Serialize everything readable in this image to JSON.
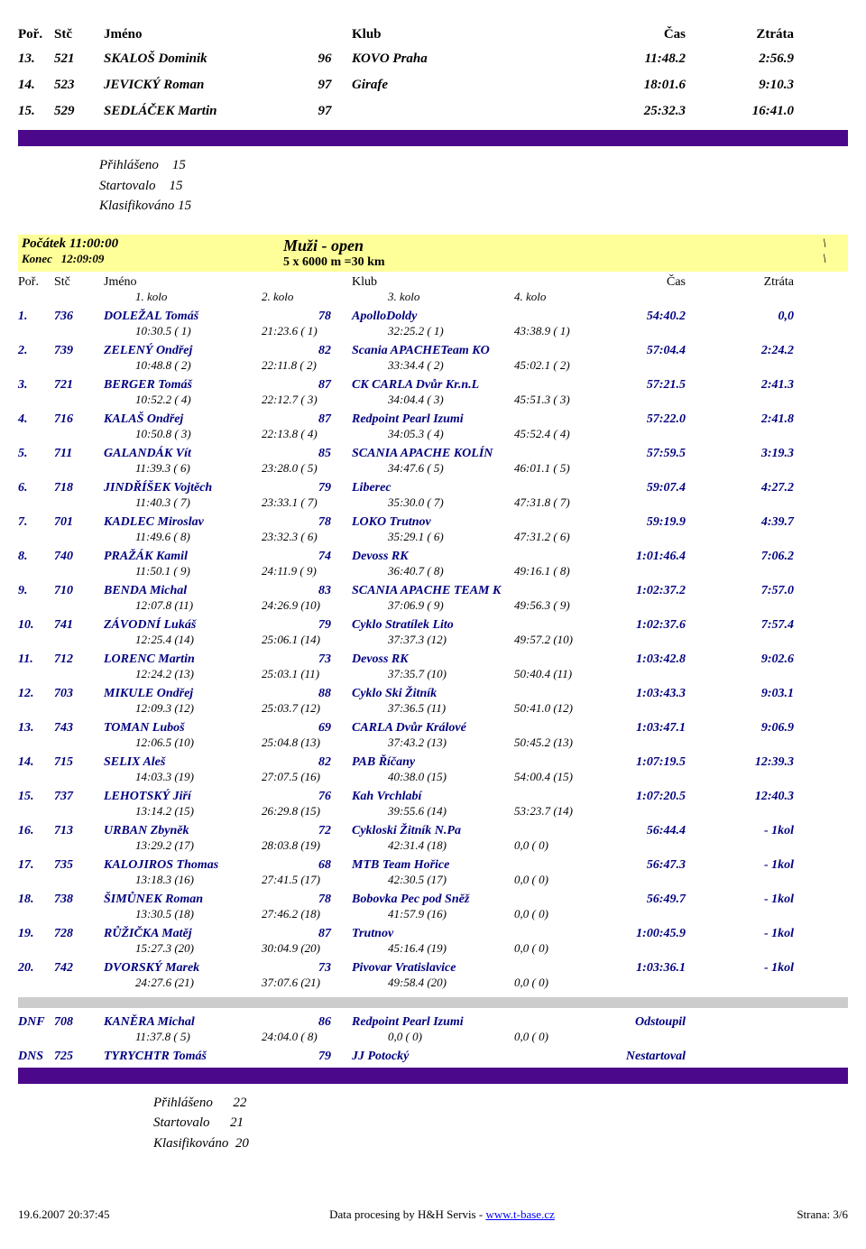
{
  "header": {
    "por": "Poř.",
    "stc": "Stč",
    "jmeno": "Jméno",
    "klub": "Klub",
    "cas": "Čas",
    "ztrata": "Ztráta"
  },
  "top_results": [
    {
      "por": "13.",
      "stc": "521",
      "name": "SKALOŠ Dominik",
      "bib": "96",
      "club": "KOVO Praha",
      "time": "11:48.2",
      "loss": "2:56.9"
    },
    {
      "por": "14.",
      "stc": "523",
      "name": "JEVICKÝ Roman",
      "bib": "97",
      "club": "Girafe",
      "time": "18:01.6",
      "loss": "9:10.3"
    },
    {
      "por": "15.",
      "stc": "529",
      "name": "SEDLÁČEK Martin",
      "bib": "97",
      "club": "",
      "time": "25:32.3",
      "loss": "16:41.0"
    }
  ],
  "stats1": {
    "prih_label": "Přihlášeno",
    "prih": "15",
    "start_label": "Startovalo",
    "start": "15",
    "klas_label": "Klasifikováno",
    "klas": "15"
  },
  "banner": {
    "start_label": "Počátek",
    "start_time": "11:00:00",
    "end_label": "Konec",
    "end_time": "12:09:09",
    "title": "Muži - open",
    "course": "5 x 6000 m =30 km",
    "slash": "\\"
  },
  "kolo": {
    "k1": "1. kolo",
    "k2": "2. kolo",
    "k3": "3. kolo",
    "k4": "4. kolo"
  },
  "results": [
    {
      "por": "1.",
      "stc": "736",
      "name": "DOLEŽAL Tomáš",
      "bib": "78",
      "club": "ApolloDoldy",
      "time": "54:40.2",
      "loss": "0,0",
      "splits": [
        "10:30.5  ( 1)",
        "21:23.6  ( 1)",
        "32:25.2  ( 1)",
        "43:38.9  ( 1)"
      ]
    },
    {
      "por": "2.",
      "stc": "739",
      "name": "ZELENÝ Ondřej",
      "bib": "82",
      "club": "Scania APACHETeam KO",
      "time": "57:04.4",
      "loss": "2:24.2",
      "splits": [
        "10:48.8  ( 2)",
        "22:11.8  ( 2)",
        "33:34.4  ( 2)",
        "45:02.1  ( 2)"
      ]
    },
    {
      "por": "3.",
      "stc": "721",
      "name": "BERGER Tomáš",
      "bib": "87",
      "club": "CK CARLA Dvůr Kr.n.L",
      "time": "57:21.5",
      "loss": "2:41.3",
      "splits": [
        "10:52.2  ( 4)",
        "22:12.7  ( 3)",
        "34:04.4  ( 3)",
        "45:51.3  ( 3)"
      ]
    },
    {
      "por": "4.",
      "stc": "716",
      "name": "KALAŠ Ondřej",
      "bib": "87",
      "club": "Redpoint Pearl Izumi",
      "time": "57:22.0",
      "loss": "2:41.8",
      "splits": [
        "10:50.8  ( 3)",
        "22:13.8  ( 4)",
        "34:05.3  ( 4)",
        "45:52.4  ( 4)"
      ]
    },
    {
      "por": "5.",
      "stc": "711",
      "name": "GALANDÁK Vít",
      "bib": "85",
      "club": "SCANIA APACHE KOLÍN",
      "time": "57:59.5",
      "loss": "3:19.3",
      "splits": [
        "11:39.3  ( 6)",
        "23:28.0  ( 5)",
        "34:47.6  ( 5)",
        "46:01.1  ( 5)"
      ]
    },
    {
      "por": "6.",
      "stc": "718",
      "name": "JINDŘÍŠEK Vojtěch",
      "bib": "79",
      "club": "Liberec",
      "time": "59:07.4",
      "loss": "4:27.2",
      "splits": [
        "11:40.3  ( 7)",
        "23:33.1  ( 7)",
        "35:30.0  ( 7)",
        "47:31.8  ( 7)"
      ]
    },
    {
      "por": "7.",
      "stc": "701",
      "name": "KADLEC Miroslav",
      "bib": "78",
      "club": "LOKO Trutnov",
      "time": "59:19.9",
      "loss": "4:39.7",
      "splits": [
        "11:49.6  ( 8)",
        "23:32.3  ( 6)",
        "35:29.1  ( 6)",
        "47:31.2  ( 6)"
      ]
    },
    {
      "por": "8.",
      "stc": "740",
      "name": "PRAŽÁK Kamil",
      "bib": "74",
      "club": "Devoss RK",
      "time": "1:01:46.4",
      "loss": "7:06.2",
      "splits": [
        "11:50.1  ( 9)",
        "24:11.9  ( 9)",
        "36:40.7  ( 8)",
        "49:16.1  ( 8)"
      ]
    },
    {
      "por": "9.",
      "stc": "710",
      "name": "BENDA Michal",
      "bib": "83",
      "club": "SCANIA APACHE TEAM K",
      "time": "1:02:37.2",
      "loss": "7:57.0",
      "splits": [
        "12:07.8  (11)",
        "24:26.9  (10)",
        "37:06.9  ( 9)",
        "49:56.3  ( 9)"
      ]
    },
    {
      "por": "10.",
      "stc": "741",
      "name": "ZÁVODNÍ Lukáš",
      "bib": "79",
      "club": "Cyklo Stratílek Lito",
      "time": "1:02:37.6",
      "loss": "7:57.4",
      "splits": [
        "12:25.4  (14)",
        "25:06.1  (14)",
        "37:37.3  (12)",
        "49:57.2  (10)"
      ]
    },
    {
      "por": "11.",
      "stc": "712",
      "name": "LORENC Martin",
      "bib": "73",
      "club": "Devoss RK",
      "time": "1:03:42.8",
      "loss": "9:02.6",
      "splits": [
        "12:24.2  (13)",
        "25:03.1  (11)",
        "37:35.7  (10)",
        "50:40.4  (11)"
      ]
    },
    {
      "por": "12.",
      "stc": "703",
      "name": "MIKULE Ondřej",
      "bib": "88",
      "club": "Cyklo Ski Žitník",
      "time": "1:03:43.3",
      "loss": "9:03.1",
      "splits": [
        "12:09.3  (12)",
        "25:03.7  (12)",
        "37:36.5  (11)",
        "50:41.0  (12)"
      ]
    },
    {
      "por": "13.",
      "stc": "743",
      "name": "TOMAN Luboš",
      "bib": "69",
      "club": "CARLA Dvůr Králové",
      "time": "1:03:47.1",
      "loss": "9:06.9",
      "splits": [
        "12:06.5  (10)",
        "25:04.8  (13)",
        "37:43.2  (13)",
        "50:45.2  (13)"
      ]
    },
    {
      "por": "14.",
      "stc": "715",
      "name": "SELIX Aleš",
      "bib": "82",
      "club": "PAB Říčany",
      "time": "1:07:19.5",
      "loss": "12:39.3",
      "splits": [
        "14:03.3  (19)",
        "27:07.5  (16)",
        "40:38.0  (15)",
        "54:00.4  (15)"
      ]
    },
    {
      "por": "15.",
      "stc": "737",
      "name": "LEHOTSKÝ Jiří",
      "bib": "76",
      "club": "Kah Vrchlabí",
      "time": "1:07:20.5",
      "loss": "12:40.3",
      "splits": [
        "13:14.2  (15)",
        "26:29.8  (15)",
        "39:55.6  (14)",
        "53:23.7  (14)"
      ]
    },
    {
      "por": "16.",
      "stc": "713",
      "name": "URBAN Zbyněk",
      "bib": "72",
      "club": "Cykloski Žitník N.Pa",
      "time": "56:44.4",
      "loss": "- 1kol",
      "splits": [
        "13:29.2  (17)",
        "28:03.8  (19)",
        "42:31.4  (18)",
        "0,0  ( 0)"
      ]
    },
    {
      "por": "17.",
      "stc": "735",
      "name": "KALOJIROS Thomas",
      "bib": "68",
      "club": "MTB Team Hořice",
      "time": "56:47.3",
      "loss": "- 1kol",
      "splits": [
        "13:18.3  (16)",
        "27:41.5  (17)",
        "42:30.5  (17)",
        "0,0  ( 0)"
      ]
    },
    {
      "por": "18.",
      "stc": "738",
      "name": "ŠIMŮNEK Roman",
      "bib": "78",
      "club": "Bobovka Pec pod Sněž",
      "time": "56:49.7",
      "loss": "- 1kol",
      "splits": [
        "13:30.5  (18)",
        "27:46.2  (18)",
        "41:57.9  (16)",
        "0,0  ( 0)"
      ]
    },
    {
      "por": "19.",
      "stc": "728",
      "name": "RŮŽIČKA Matěj",
      "bib": "87",
      "club": "Trutnov",
      "time": "1:00:45.9",
      "loss": "- 1kol",
      "splits": [
        "15:27.3  (20)",
        "30:04.9  (20)",
        "45:16.4  (19)",
        "0,0  ( 0)"
      ]
    },
    {
      "por": "20.",
      "stc": "742",
      "name": "DVORSKÝ Marek",
      "bib": "73",
      "club": "Pivovar Vratislavice",
      "time": "1:03:36.1",
      "loss": "- 1kol",
      "splits": [
        "24:27.6  (21)",
        "37:07.6  (21)",
        "49:58.4  (20)",
        "0,0  ( 0)"
      ]
    }
  ],
  "special": [
    {
      "por": "DNF",
      "stc": "708",
      "name": "KANĚRA Michal",
      "bib": "86",
      "club": "Redpoint Pearl Izumi",
      "time": "Odstoupil",
      "loss": "",
      "splits": [
        "11:37.8  ( 5)",
        "24:04.0  ( 8)",
        "0,0  ( 0)",
        "0,0  ( 0)"
      ]
    },
    {
      "por": "DNS",
      "stc": "725",
      "name": "TYRYCHTR Tomáš",
      "bib": "79",
      "club": "JJ Potocký",
      "time": "Nestartoval",
      "loss": "",
      "splits": null
    }
  ],
  "stats2": {
    "prih_label": "Přihlášeno",
    "prih": "22",
    "start_label": "Startovalo",
    "start": "21",
    "klas_label": "Klasifikováno",
    "klas": "20"
  },
  "footer": {
    "date": "19.6.2007 20:37:45",
    "mid_prefix": "Data procesing by H&H Servis - ",
    "link": "www.t-base.cz",
    "page": "Strana: 3/6"
  }
}
